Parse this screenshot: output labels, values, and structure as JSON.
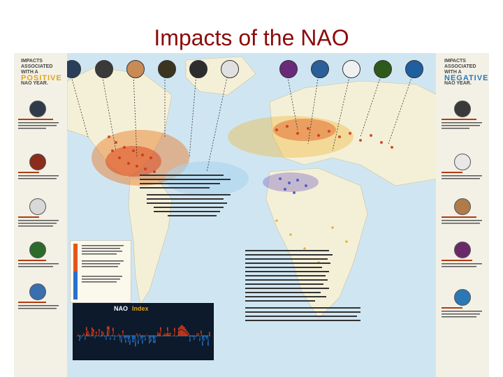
{
  "title": "Impacts of the NAO",
  "left_panel": {
    "heading_line1": "IMPACTS",
    "heading_line2": "ASSOCIATED",
    "heading_line3": "WITH A",
    "heading_big": "POSITIVE",
    "heading_line4": "NAO YEAR.",
    "items": [
      {
        "icon": "snowflake-icon",
        "color": "#2f3b4a"
      },
      {
        "icon": "crop-icon",
        "color": "#8a2d1a"
      },
      {
        "icon": "cloud-icon",
        "color": "#d8d8d8"
      },
      {
        "icon": "tree-icon",
        "color": "#2d6b2a"
      },
      {
        "icon": "shellfish-icon",
        "color": "#3a6fae"
      }
    ]
  },
  "right_panel": {
    "heading_line1": "IMPACTS",
    "heading_line2": "ASSOCIATED",
    "heading_line3": "WITH A",
    "heading_big": "NEGATIVE",
    "heading_line4": "NAO YEAR.",
    "items": [
      {
        "icon": "hurricane-icon",
        "color": "#3a3a3a"
      },
      {
        "icon": "sea-ice-icon",
        "color": "#e8e8e8"
      },
      {
        "icon": "mushroom-icon",
        "color": "#b07a4a"
      },
      {
        "icon": "grapes-icon",
        "color": "#6a2a6a"
      },
      {
        "icon": "wave-icon",
        "color": "#2a78b5"
      }
    ]
  },
  "top_icons_left": [
    {
      "icon": "rain-icon",
      "color": "#2a3f5a"
    },
    {
      "icon": "snowflake-icon",
      "color": "#3a3a3a"
    },
    {
      "icon": "bread-icon",
      "color": "#c98a55"
    },
    {
      "icon": "fish-icon",
      "color": "#3a3420"
    },
    {
      "icon": "hurricane-icon",
      "color": "#2d2d2d"
    },
    {
      "icon": "cloud-icon",
      "color": "#e0e0e0"
    }
  ],
  "top_icons_right": [
    {
      "icon": "grapes-icon",
      "color": "#6a2a7a"
    },
    {
      "icon": "water-drop-icon",
      "color": "#2a5f9a"
    },
    {
      "icon": "sea-ice-icon",
      "color": "#f0f0f0"
    },
    {
      "icon": "tree-icon",
      "color": "#2d5a1a"
    },
    {
      "icon": "wave-icon",
      "color": "#1f5fa0"
    }
  ],
  "nao_chart": {
    "title": "NAO",
    "index_label": "Index",
    "colors": {
      "positive": "#e23b1a",
      "negative": "#1f6fc0"
    }
  },
  "colors": {
    "title": "#8b0a0a",
    "ocean": "#cfe6f2",
    "land": "#f4f0d8",
    "warm": "#e2561a",
    "cool": "#2a6fd0"
  }
}
